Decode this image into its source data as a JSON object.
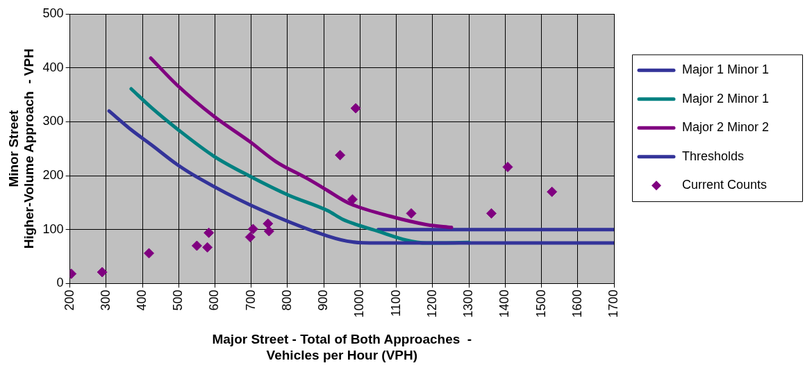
{
  "chart_data": {
    "type": "line",
    "xlabel": "Major Street - Total of Both Approaches  -\nVehicles per Hour (VPH)",
    "ylabel": "Minor Street\nHigher-Volume Approach  - VPH",
    "xlim": [
      200,
      1700
    ],
    "xticks": [
      200,
      300,
      400,
      500,
      600,
      700,
      800,
      900,
      1000,
      1100,
      1200,
      1300,
      1400,
      1500,
      1600,
      1700
    ],
    "ylim": [
      0,
      500
    ],
    "yticks": [
      0,
      100,
      200,
      300,
      400,
      500
    ],
    "grid": true,
    "legend": "right",
    "line_style": "solid",
    "series": [
      {
        "name": "Major 1 Minor 1",
        "type": "line",
        "color": "#333399",
        "marker": "none",
        "x": [
          308,
          371,
          425,
          497,
          559,
          696,
          911,
          979,
          1048,
          1300
        ],
        "values": [
          320,
          284,
          257,
          220,
          194,
          146,
          88,
          77,
          75,
          75
        ]
      },
      {
        "name": "Major 2 Minor 1",
        "type": "line",
        "color": "#008080",
        "marker": "none",
        "x": [
          369,
          425,
          497,
          597,
          696,
          802,
          911,
          952,
          1034,
          1184,
          1300
        ],
        "values": [
          361,
          326,
          286,
          236,
          199,
          164,
          135,
          119,
          100,
          75,
          76
        ]
      },
      {
        "name": "Major 2 Minor 2",
        "type": "line",
        "color": "#800080",
        "marker": "none",
        "x": [
          423,
          494,
          597,
          696,
          768,
          856,
          911,
          952,
          979,
          1081,
          1184,
          1252
        ],
        "values": [
          418,
          369,
          310,
          263,
          226,
          194,
          172,
          155,
          146,
          125,
          109,
          104
        ]
      },
      {
        "name": "Thresholds",
        "type": "line",
        "color": "#333399",
        "marker": "none",
        "x": [
          1050,
          1700,
          null,
          1300,
          1700
        ],
        "values": [
          100,
          100,
          null,
          75,
          75
        ]
      },
      {
        "name": "Current Counts",
        "type": "scatter",
        "color": "#800080",
        "marker": "diamond",
        "x": [
          204,
          289,
          418,
          550,
          579,
          583,
          697,
          705,
          746,
          749,
          945,
          988,
          979,
          1141,
          1362,
          1407,
          1529
        ],
        "values": [
          18,
          21,
          56,
          70,
          67,
          94,
          86,
          101,
          111,
          97,
          238,
          325,
          156,
          130,
          130,
          216,
          170
        ]
      }
    ]
  }
}
